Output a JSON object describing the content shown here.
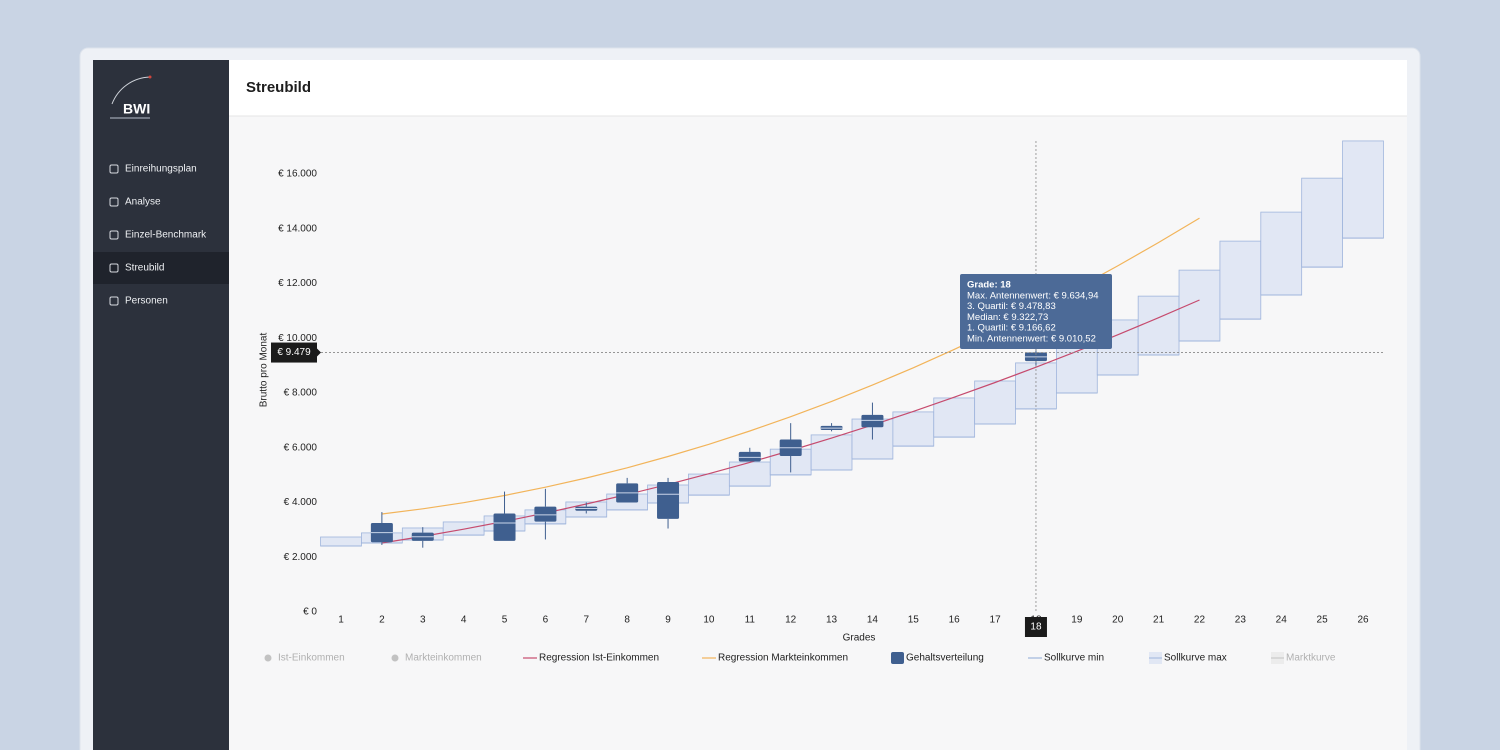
{
  "sidebar": {
    "logo": "BWI",
    "menu": [
      "Einreihungsplan",
      "Analyse",
      "Einzel-Benchmark",
      "Streubild",
      "Personen"
    ],
    "active": 3
  },
  "header": {
    "title": "Streubild"
  },
  "chart_data": {
    "type": "box",
    "x_label": "Grades",
    "y_label": "Brutto pro Monat",
    "categories": [
      1,
      2,
      3,
      4,
      5,
      6,
      7,
      8,
      9,
      10,
      11,
      12,
      13,
      14,
      15,
      16,
      17,
      18,
      19,
      20,
      21,
      22,
      23,
      24,
      25,
      26
    ],
    "ylim": [
      0,
      17500
    ],
    "yticks": [
      {
        "value": 0,
        "label": "€ 0"
      },
      {
        "value": 2000,
        "label": "€ 2.000"
      },
      {
        "value": 4000,
        "label": "€ 4.000"
      },
      {
        "value": 6000,
        "label": "€ 6.000"
      },
      {
        "value": 8000,
        "label": "€ 8.000"
      },
      {
        "value": 10000,
        "label": "€ 10.000"
      },
      {
        "value": 12000,
        "label": "€ 12.000"
      },
      {
        "value": 14000,
        "label": "€ 14.000"
      },
      {
        "value": 16000,
        "label": "€ 16.000"
      }
    ],
    "series": [
      {
        "name": "Ist-Einkommen",
        "color": "#b5b5b5",
        "symbol": "dot",
        "hidden": true
      },
      {
        "name": "Markteinkommen",
        "color": "#b5b5b5",
        "symbol": "dot",
        "hidden": true
      },
      {
        "name": "Regression Ist-Einkommen",
        "type": "line",
        "symbol": "line",
        "color": "#c64b6e",
        "values": [
          null,
          2520,
          2763,
          3026,
          3311,
          3618,
          3945,
          4294,
          4663,
          5054,
          5465,
          5900,
          6355,
          6830,
          7327,
          7846,
          8385,
          8945,
          9526,
          10128,
          10751,
          11400,
          null,
          null,
          null,
          null
        ]
      },
      {
        "name": "Regression Markteinkommen",
        "type": "line",
        "symbol": "line",
        "color": "#f2b45a",
        "values": [
          null,
          3580,
          3769,
          3995,
          4258,
          4558,
          4895,
          5269,
          5680,
          6128,
          6613,
          7135,
          7694,
          8290,
          8923,
          9593,
          10300,
          11044,
          11825,
          12643,
          13498,
          14390,
          null,
          null,
          null,
          null
        ]
      },
      {
        "name": "Gehaltsverteilung",
        "type": "box",
        "symbol": "box",
        "color": "#3f5f8f",
        "min": [
          null,
          2450,
          2350,
          null,
          2600,
          2650,
          3600,
          4000,
          3050,
          null,
          5500,
          5100,
          6600,
          6300,
          null,
          null,
          null,
          9010.52,
          null,
          null,
          null,
          null,
          null,
          null,
          null,
          null
        ],
        "q1": [
          null,
          2550,
          2600,
          null,
          2600,
          3300,
          3700,
          4000,
          3400,
          null,
          5500,
          5700,
          6650,
          6750,
          null,
          null,
          null,
          9166.62,
          null,
          null,
          null,
          null,
          null,
          null,
          null,
          null
        ],
        "median": [
          null,
          2900,
          2750,
          null,
          3250,
          3550,
          3780,
          4350,
          4300,
          null,
          5650,
          6000,
          6720,
          7000,
          null,
          null,
          null,
          9322.73,
          null,
          null,
          null,
          null,
          null,
          null,
          null,
          null
        ],
        "q3": [
          null,
          3250,
          2900,
          null,
          3600,
          3850,
          3850,
          4700,
          4750,
          null,
          5850,
          6300,
          6800,
          7200,
          null,
          null,
          null,
          9478.83,
          null,
          null,
          null,
          null,
          null,
          null,
          null,
          null
        ],
        "max": [
          null,
          3650,
          3100,
          null,
          4400,
          4500,
          4000,
          4900,
          4900,
          null,
          6000,
          6900,
          6900,
          7650,
          null,
          null,
          null,
          9634.94,
          null,
          null,
          null,
          null,
          null,
          null,
          null,
          null
        ]
      },
      {
        "name": "Sollkurve min",
        "type": "step",
        "symbol": "line",
        "color": "#9fb5dc",
        "values": [
          2410,
          2520,
          2630,
          2810,
          2960,
          3220,
          3470,
          3730,
          3980,
          4270,
          4600,
          5010,
          5190,
          5590,
          6060,
          6390,
          6870,
          7420,
          8000,
          8660,
          9390,
          9900,
          10700,
          11580,
          12600,
          13660
        ]
      },
      {
        "name": "Sollkurve max",
        "type": "band",
        "symbol": "band",
        "color": "#e1e7f4",
        "values": [
          2740,
          2890,
          3070,
          3290,
          3510,
          3730,
          4020,
          4310,
          4640,
          5040,
          5480,
          5950,
          6470,
          7050,
          7310,
          7820,
          8440,
          9100,
          9830,
          10670,
          11540,
          12490,
          13550,
          14610,
          15850,
          17210
        ]
      },
      {
        "name": "Marktkurve",
        "color": "#cfcfcf",
        "symbol": "band",
        "hidden": true
      }
    ],
    "crosshair": {
      "x": 18,
      "y": 9479,
      "y_label": "€ 9.479"
    },
    "tooltip": {
      "title": "Grade: 18",
      "lines": [
        "Max. Antennenwert: € 9.634,94",
        "3. Quartil: € 9.478,83",
        "Median: € 9.322,73",
        "1. Quartil: € 9.166,62",
        "Min. Antennenwert: € 9.010,52"
      ]
    }
  }
}
